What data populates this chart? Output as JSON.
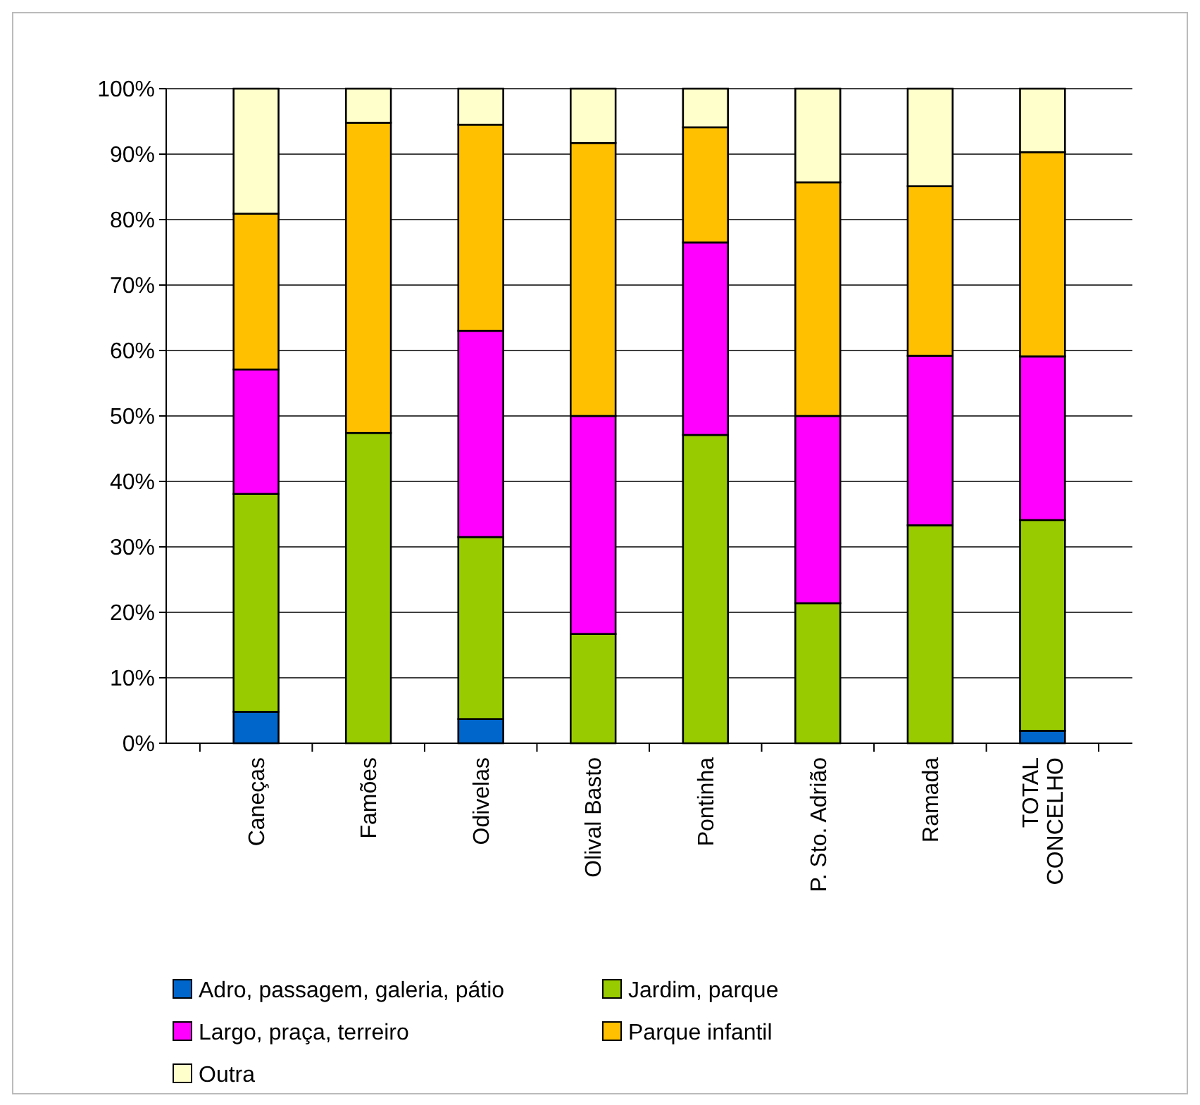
{
  "chart_data": {
    "type": "bar",
    "stacked": true,
    "categories": [
      "Caneças",
      "Famões",
      "Odivelas",
      "Olival Basto",
      "Pontinha",
      "P. Sto. Adrião",
      "Ramada",
      "TOTAL CONCELHO"
    ],
    "series": [
      {
        "name": "Adro, passagem, galeria, pátio",
        "color": "#0066cc",
        "values": [
          4.8,
          0,
          3.7,
          0,
          0,
          0,
          0,
          1.9
        ]
      },
      {
        "name": "Jardim, parque",
        "color": "#99cc00",
        "values": [
          33.3,
          47.4,
          27.8,
          16.7,
          47.1,
          21.4,
          33.3,
          32.2
        ]
      },
      {
        "name": "Largo, praça, terreiro",
        "color": "#ff00ff",
        "values": [
          19.0,
          0,
          31.5,
          33.3,
          29.4,
          28.6,
          25.9,
          25.0
        ]
      },
      {
        "name": "Parque infantil",
        "color": "#ffc000",
        "values": [
          23.8,
          47.4,
          31.5,
          41.7,
          17.6,
          35.7,
          25.9,
          31.2
        ]
      },
      {
        "name": "Outra",
        "color": "#ffffcc",
        "values": [
          19.1,
          5.2,
          5.5,
          8.3,
          5.9,
          14.3,
          14.9,
          9.7
        ]
      }
    ],
    "ylim": [
      0,
      100
    ],
    "yticks": [
      {
        "value": 0,
        "label": "0%"
      },
      {
        "value": 10,
        "label": "10%"
      },
      {
        "value": 20,
        "label": "20%"
      },
      {
        "value": 30,
        "label": "30%"
      },
      {
        "value": 40,
        "label": "40%"
      },
      {
        "value": 50,
        "label": "50%"
      },
      {
        "value": 60,
        "label": "60%"
      },
      {
        "value": 70,
        "label": "70%"
      },
      {
        "value": 80,
        "label": "80%"
      },
      {
        "value": 90,
        "label": "90%"
      },
      {
        "value": 100,
        "label": "100%"
      }
    ],
    "grid": "y",
    "legend": "bottom"
  }
}
